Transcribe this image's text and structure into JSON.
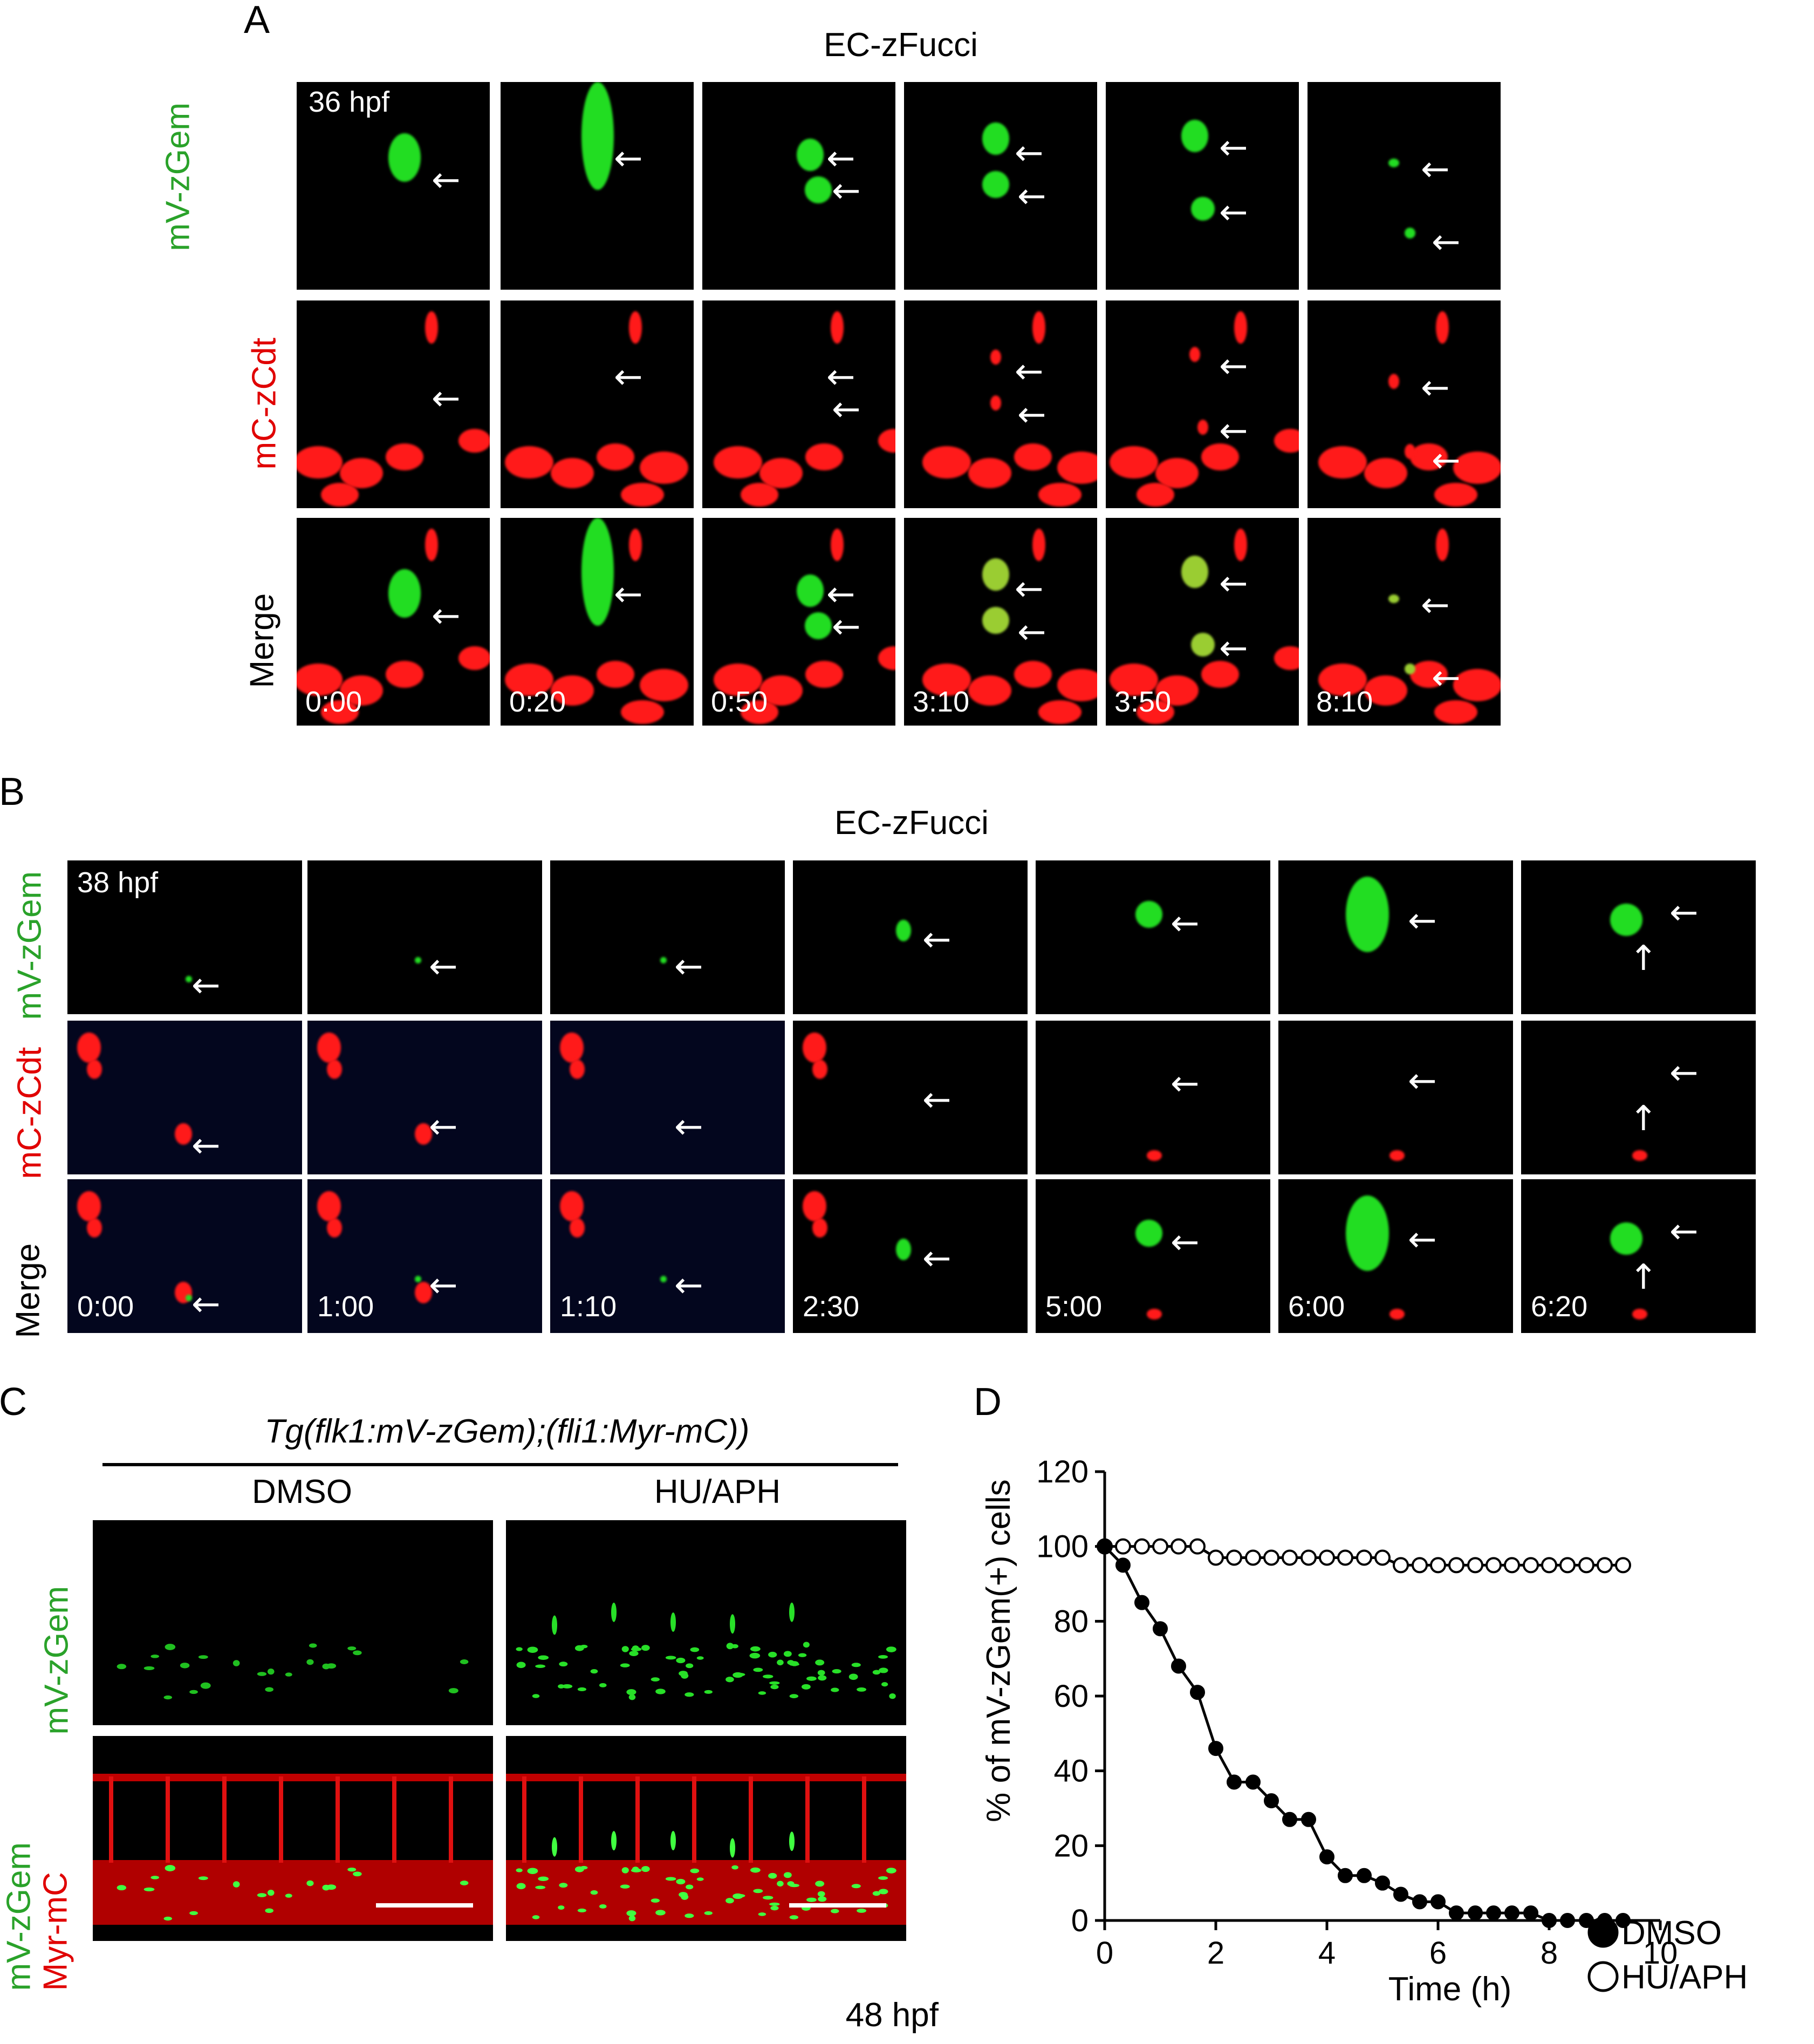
{
  "panel_labels": [
    "A",
    "B",
    "C",
    "D"
  ],
  "panelA": {
    "title": "EC-zFucci",
    "stage": "36 hpf",
    "rows": [
      "mV-zGem",
      "mC-zCdt",
      "Merge"
    ],
    "times": [
      "0:00",
      "0:20",
      "0:50",
      "3:10",
      "3:50",
      "8:10"
    ]
  },
  "panelB": {
    "title": "EC-zFucci",
    "stage": "38 hpf",
    "rows": [
      "mV-zGem",
      "mC-zCdt",
      "Merge"
    ],
    "times": [
      "0:00",
      "1:00",
      "1:10",
      "2:30",
      "5:00",
      "6:00",
      "6:20"
    ]
  },
  "panelC": {
    "genotype": "Tg(flk1:mV-zGem);(fli1:Myr-mC))",
    "conditions": [
      "DMSO",
      "HU/APH"
    ],
    "row1": "mV-zGem",
    "row2_green": "mV-zGem",
    "row2_red": "Myr-mC",
    "stage": "48 hpf"
  },
  "colors": {
    "green": "#2aa22a",
    "red": "#e00000",
    "black": "#000000"
  },
  "chart_data": {
    "type": "line",
    "title": "",
    "xlabel": "Time (h)",
    "ylabel": "% of mV-zGem(+) cells",
    "xlim": [
      0,
      10
    ],
    "ylim": [
      0,
      120
    ],
    "xticks": [
      0,
      2,
      4,
      6,
      8,
      10
    ],
    "yticks": [
      0,
      20,
      40,
      60,
      80,
      100,
      120
    ],
    "legend_position": "right",
    "series": [
      {
        "name": "DMSO",
        "marker": "filled-circle",
        "x": [
          0,
          0.33,
          0.67,
          1,
          1.33,
          1.67,
          2,
          2.33,
          2.67,
          3,
          3.33,
          3.67,
          4,
          4.33,
          4.67,
          5,
          5.33,
          5.67,
          6,
          6.33,
          6.67,
          7,
          7.33,
          7.67,
          8,
          8.33,
          8.67,
          9,
          9.33
        ],
        "y": [
          100,
          95,
          85,
          78,
          68,
          61,
          46,
          37,
          37,
          32,
          27,
          27,
          17,
          12,
          12,
          10,
          7,
          5,
          5,
          2,
          2,
          2,
          2,
          2,
          0,
          0,
          0,
          0,
          0
        ]
      },
      {
        "name": "HU/APH",
        "marker": "open-circle",
        "x": [
          0,
          0.33,
          0.67,
          1,
          1.33,
          1.67,
          2,
          2.33,
          2.67,
          3,
          3.33,
          3.67,
          4,
          4.33,
          4.67,
          5,
          5.33,
          5.67,
          6,
          6.33,
          6.67,
          7,
          7.33,
          7.67,
          8,
          8.33,
          8.67,
          9,
          9.33
        ],
        "y": [
          100,
          100,
          100,
          100,
          100,
          100,
          97,
          97,
          97,
          97,
          97,
          97,
          97,
          97,
          97,
          97,
          95,
          95,
          95,
          95,
          95,
          95,
          95,
          95,
          95,
          95,
          95,
          95,
          95
        ]
      }
    ]
  }
}
